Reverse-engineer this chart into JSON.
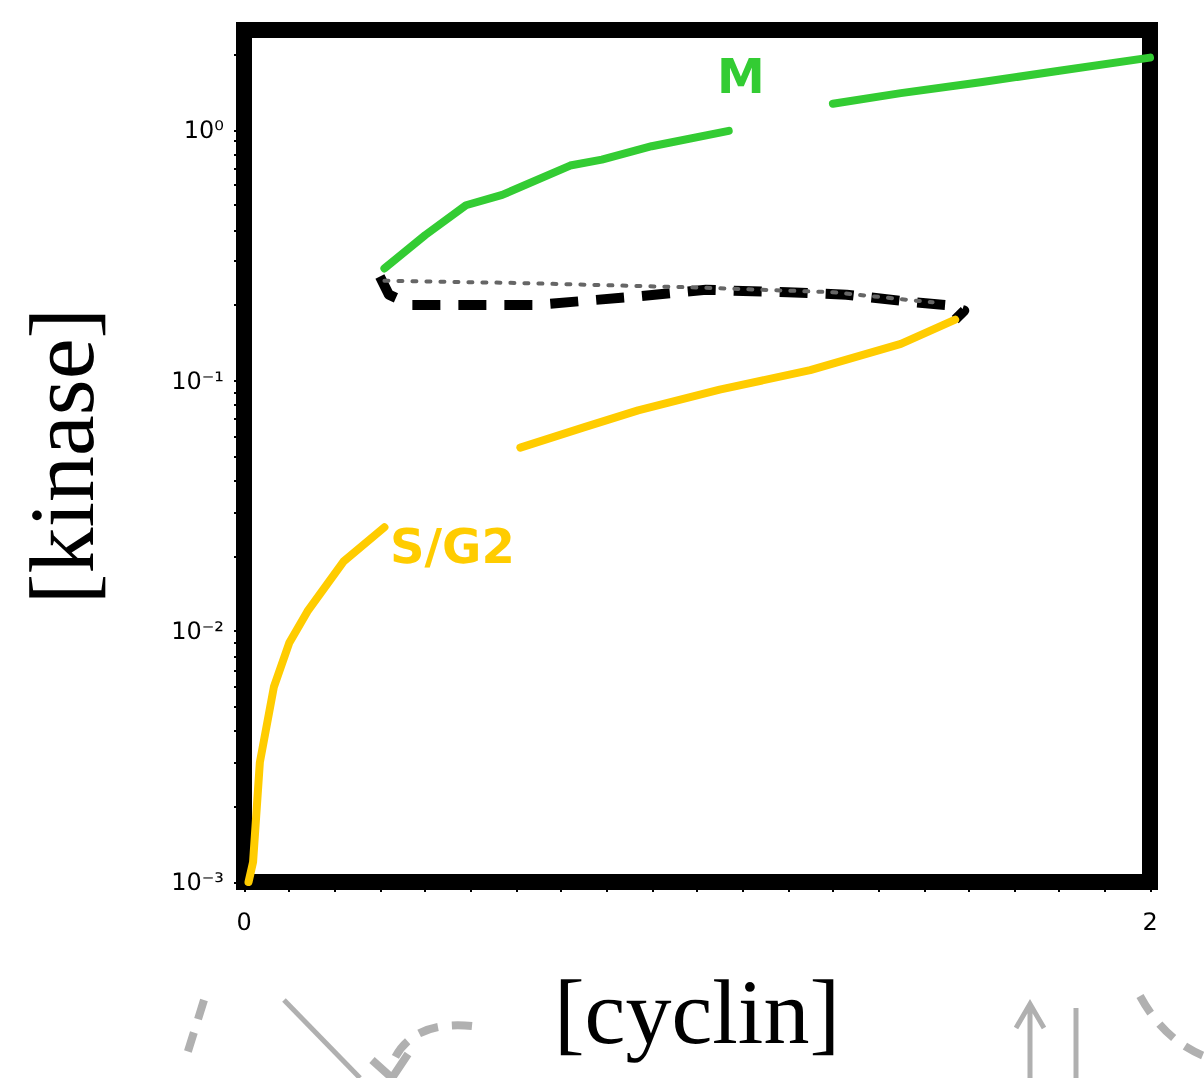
{
  "chart_data": {
    "type": "line",
    "xlabel": "[cyclin]",
    "ylabel": "[kinase]",
    "log": "y",
    "grid": false,
    "legend": false,
    "marker": "none",
    "xlim": [
      0,
      2
    ],
    "ylim": [
      0.001,
      2.5
    ],
    "xticks": [
      0,
      {
        "value": 0.1,
        "label": null
      },
      {
        "value": 0.2,
        "label": null
      },
      {
        "value": 0.3,
        "label": null
      },
      {
        "value": 0.4,
        "label": null
      },
      {
        "value": 0.5,
        "label": null
      },
      {
        "value": 0.6,
        "label": null
      },
      {
        "value": 0.7,
        "label": null
      },
      {
        "value": 0.8,
        "label": null
      },
      {
        "value": 0.9,
        "label": null
      },
      {
        "value": 1,
        "label": null
      },
      {
        "value": 1.1,
        "label": null
      },
      {
        "value": 1.2,
        "label": null
      },
      {
        "value": 1.3,
        "label": null
      },
      {
        "value": 1.4,
        "label": null
      },
      {
        "value": 1.5,
        "label": null
      },
      {
        "value": 1.6,
        "label": null
      },
      {
        "value": 1.7,
        "label": null
      },
      {
        "value": 1.8,
        "label": null
      },
      {
        "value": 1.9,
        "label": null
      },
      2
    ],
    "yticks": [
      {
        "value": 0.001,
        "label": "10⁻³"
      },
      {
        "value": 0.002,
        "label": null
      },
      {
        "value": 0.003,
        "label": null
      },
      {
        "value": 0.004,
        "label": null
      },
      {
        "value": 0.005,
        "label": null
      },
      {
        "value": 0.006,
        "label": null
      },
      {
        "value": 0.007,
        "label": null
      },
      {
        "value": 0.008,
        "label": null
      },
      {
        "value": 0.009,
        "label": null
      },
      {
        "value": 0.01,
        "label": "10⁻²"
      },
      {
        "value": 0.02,
        "label": null
      },
      {
        "value": 0.03,
        "label": null
      },
      {
        "value": 0.04,
        "label": null
      },
      {
        "value": 0.05,
        "label": null
      },
      {
        "value": 0.06,
        "label": null
      },
      {
        "value": 0.07,
        "label": null
      },
      {
        "value": 0.08,
        "label": null
      },
      {
        "value": 0.09,
        "label": null
      },
      {
        "value": 0.1,
        "label": "10⁻¹"
      },
      {
        "value": 0.2,
        "label": null
      },
      {
        "value": 0.3,
        "label": null
      },
      {
        "value": 0.4,
        "label": null
      },
      {
        "value": 0.5,
        "label": null
      },
      {
        "value": 0.6,
        "label": null
      },
      {
        "value": 0.7,
        "label": null
      },
      {
        "value": 0.8,
        "label": null
      },
      {
        "value": 0.9,
        "label": null
      },
      {
        "value": 1,
        "label": "10⁰"
      },
      {
        "value": 2,
        "label": null
      }
    ],
    "series": [
      {
        "name": "M",
        "color": "#33cc33",
        "line_style": "solid",
        "x": [
          0.31,
          0.4,
          0.49,
          0.57,
          0.72,
          0.79,
          0.9,
          1.07,
          1.18,
          1.3,
          1.45,
          1.63,
          1.8,
          2.0
        ],
        "values": [
          0.28,
          0.38,
          0.5,
          0.55,
          0.72,
          0.76,
          0.86,
          0.99,
          null,
          1.27,
          1.4,
          1.55,
          1.72,
          1.94
        ]
      },
      {
        "color": "#000000",
        "line_style": "dashed",
        "x": [
          0.3,
          0.32,
          0.37,
          0.5,
          0.64,
          0.85,
          1.02,
          1.2,
          1.33,
          1.48,
          1.55,
          1.59,
          1.57
        ],
        "values": [
          0.26,
          0.22,
          0.2,
          0.2,
          0.2,
          0.215,
          0.23,
          0.225,
          0.22,
          0.205,
          0.2,
          0.19,
          0.175
        ]
      },
      {
        "color": "#666666",
        "line_style": "dotted",
        "x": [
          0.31,
          0.6,
          1.0,
          1.3,
          1.52
        ],
        "values": [
          0.25,
          0.245,
          0.235,
          0.225,
          0.205
        ]
      },
      {
        "name": "S/G2",
        "color": "#ffcc00",
        "line_style": "solid",
        "x": [
          0.01,
          0.02,
          0.035,
          0.066,
          0.1,
          0.14,
          0.22,
          0.31,
          0.45,
          0.61,
          0.75,
          0.87,
          1.05,
          1.25,
          1.45,
          1.57
        ],
        "values": [
          0.001,
          0.0012,
          0.003,
          0.006,
          0.009,
          0.012,
          0.019,
          0.026,
          null,
          0.054,
          0.065,
          0.076,
          0.092,
          0.11,
          0.14,
          0.175
        ]
      }
    ]
  }
}
